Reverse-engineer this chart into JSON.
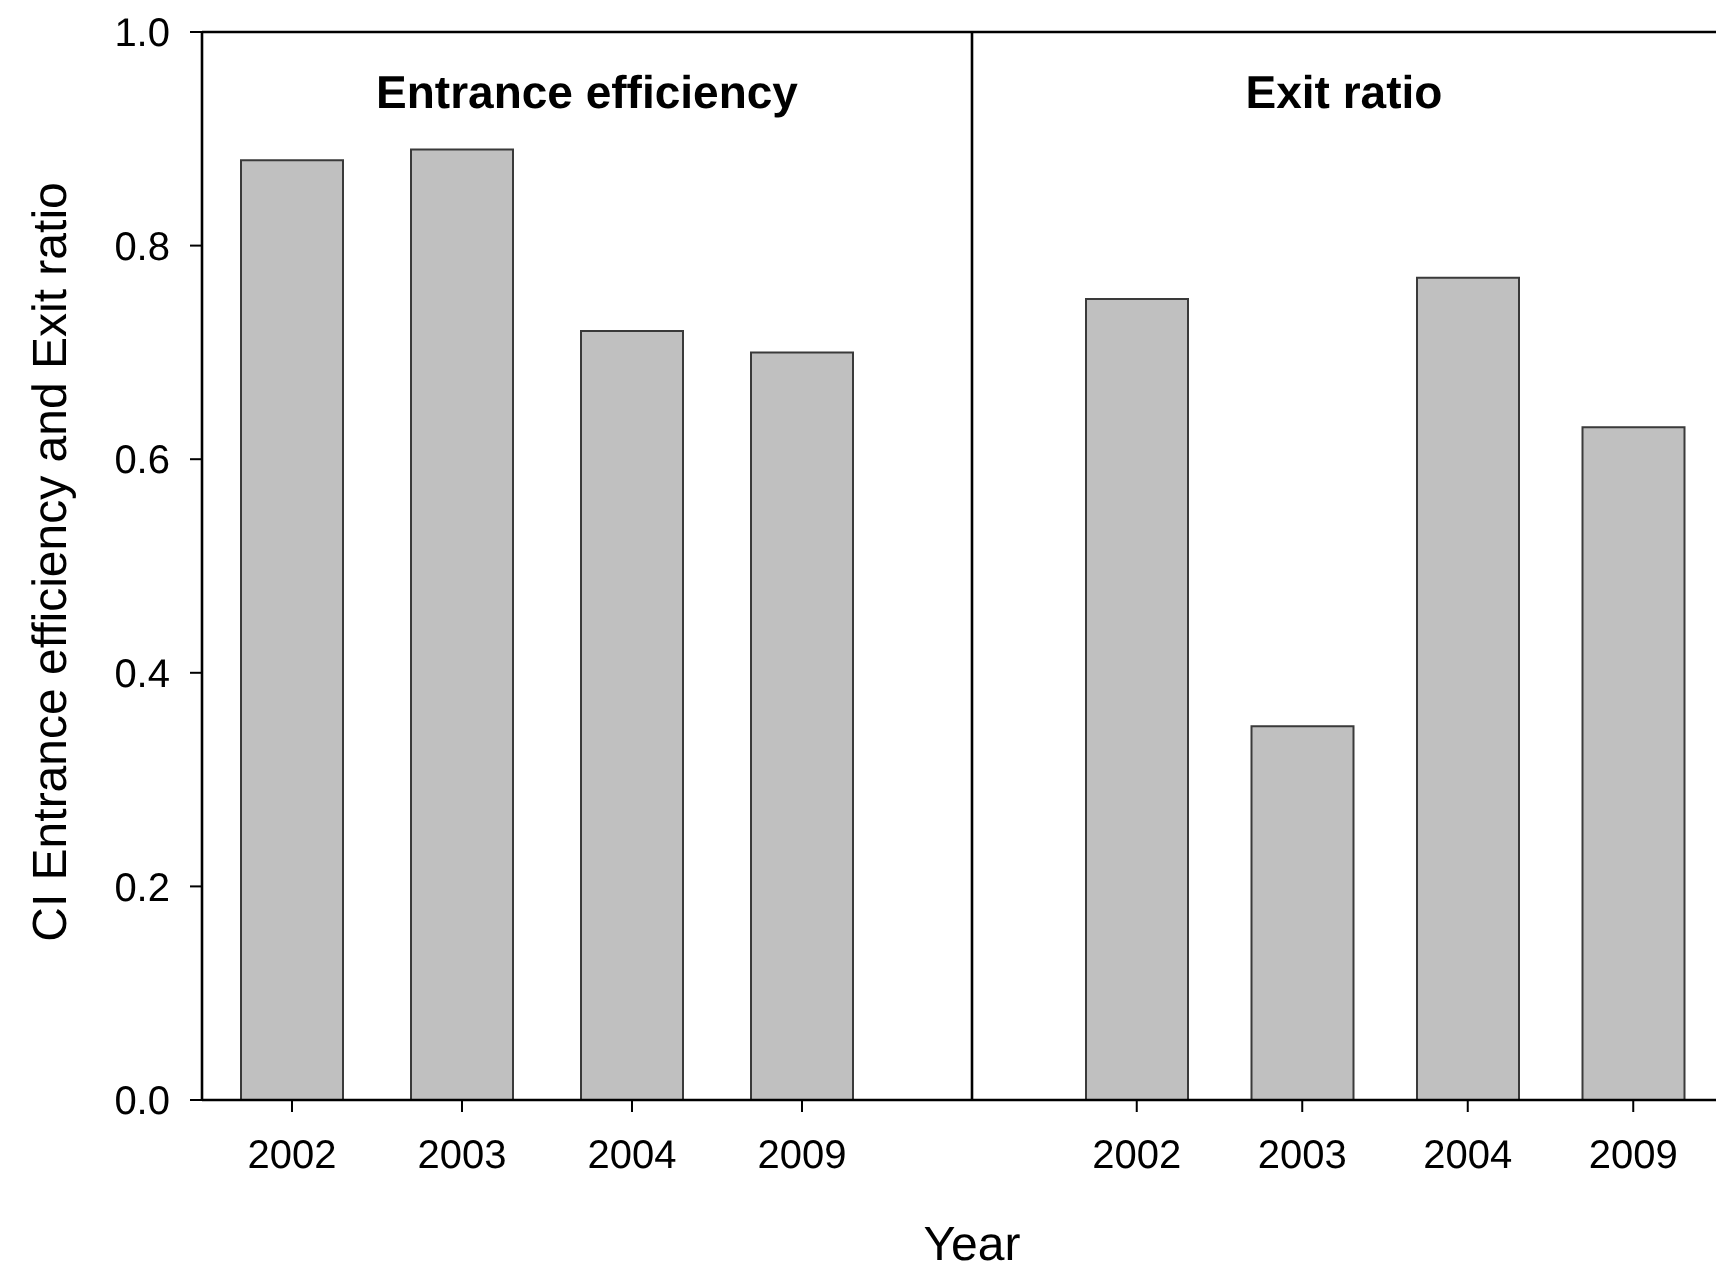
{
  "chart_data": [
    {
      "type": "bar",
      "title": "Entrance efficiency",
      "xlabel": "Year",
      "ylabel": "CI Entrance efficiency and Exit ratio",
      "categories": [
        "2002",
        "2003",
        "2004",
        "2009"
      ],
      "values": [
        0.88,
        0.89,
        0.72,
        0.7
      ],
      "color": "#c0c0c0",
      "ylim": [
        0,
        1
      ],
      "yticks": [
        {
          "value": 0,
          "label": "0.0"
        },
        0.2,
        0.4,
        0.6,
        0.8,
        {
          "value": 1,
          "label": "1.0"
        }
      ]
    },
    {
      "type": "bar",
      "title": "Exit ratio",
      "categories": [
        "2002",
        "2003",
        "2004",
        "2009"
      ],
      "values": [
        0.75,
        0.35,
        0.77,
        0.63
      ],
      "color": "#c0c0c0",
      "ylim": [
        0,
        1
      ],
      "tick_labels": "x"
    }
  ]
}
